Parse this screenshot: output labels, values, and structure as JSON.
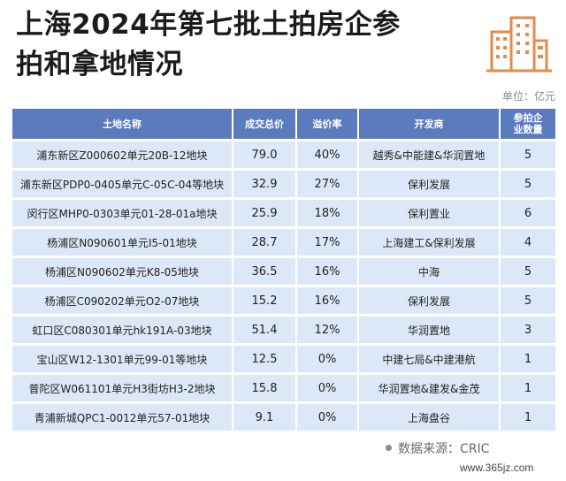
{
  "title_line1": "上海2024年第七批土拍房企参",
  "title_line2": "拍和拿地情况",
  "unit": "单位：亿元",
  "table": {
    "headers": [
      "土地名称",
      "成交总价",
      "溢价率",
      "开发商",
      "参拍企业数量"
    ],
    "rows": [
      [
        "浦东新区Z000602单元20B-12地块",
        "79.0",
        "40%",
        "越秀&中能建&华润置地",
        "5"
      ],
      [
        "浦东新区PDP0-0405单元C-05C-04等地块",
        "32.9",
        "27%",
        "保利发展",
        "5"
      ],
      [
        "闵行区MHP0-0303单元01-28-01a地块",
        "25.9",
        "18%",
        "保利置业",
        "6"
      ],
      [
        "杨浦区N090601单元I5-01地块",
        "28.7",
        "17%",
        "上海建工&保利发展",
        "4"
      ],
      [
        "杨浦区N090602单元K8-05地块",
        "36.5",
        "16%",
        "中海",
        "5"
      ],
      [
        "杨浦区C090202单元O2-07地块",
        "15.2",
        "16%",
        "保利发展",
        "5"
      ],
      [
        "虹口区C080301单元hk191A-03地块",
        "51.4",
        "12%",
        "华润置地",
        "3"
      ],
      [
        "宝山区W12-1301单元99-01等地块",
        "12.5",
        "0%",
        "中建七局&中建港航",
        "1"
      ],
      [
        "普陀区W061101单元H3街坊H3-2地块",
        "15.8",
        "0%",
        "华润置地&建发&金茂",
        "1"
      ],
      [
        "青浦新城QPC1-0012单元57-01地块",
        "9.1",
        "0%",
        "上海盘谷",
        "1"
      ]
    ]
  },
  "source": "数据来源：CRIC",
  "watermark": "www.365jz.com",
  "colors": {
    "header_bg": "#5b7bbf",
    "row_bg": "#dce8f7",
    "logo": "#e58a4a"
  }
}
